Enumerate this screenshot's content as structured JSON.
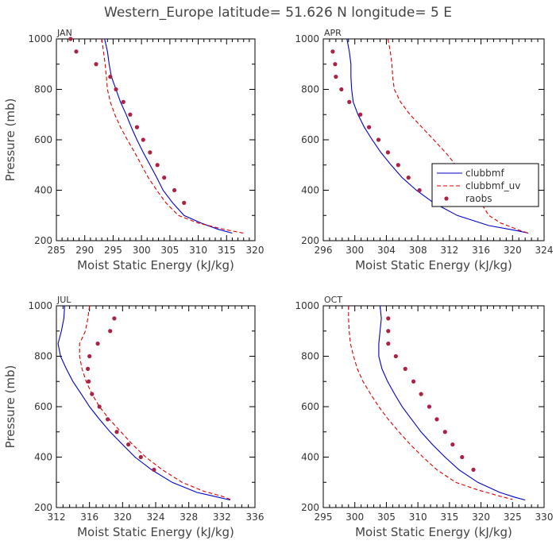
{
  "figure": {
    "title": "Western_Europe  latitude= 51.626 N longitude= 5 E"
  },
  "chart_data": [
    {
      "type": "line",
      "panel": "JAN",
      "xlabel": "Moist Static Energy (kJ/kg)",
      "ylabel": "Pressure (mb)",
      "xlim": [
        285,
        320
      ],
      "ylim": [
        1000,
        200
      ],
      "xticks": [
        285,
        290,
        295,
        300,
        305,
        310,
        315,
        320
      ],
      "yticks": [
        200,
        400,
        600,
        800,
        1000
      ],
      "series": [
        {
          "name": "clubbmf",
          "style": "solid",
          "color": "#0000cc",
          "points": [
            [
              293.5,
              1000
            ],
            [
              294.0,
              950
            ],
            [
              294.3,
              900
            ],
            [
              294.7,
              850
            ],
            [
              295.5,
              800
            ],
            [
              296.3,
              750
            ],
            [
              297.3,
              700
            ],
            [
              298.2,
              650
            ],
            [
              299.2,
              600
            ],
            [
              300.3,
              550
            ],
            [
              301.5,
              500
            ],
            [
              302.7,
              450
            ],
            [
              303.8,
              400
            ],
            [
              305.5,
              350
            ],
            [
              307.5,
              300
            ],
            [
              310.5,
              270
            ],
            [
              313.5,
              245
            ],
            [
              316.0,
              230
            ]
          ]
        },
        {
          "name": "clubbmf_uv",
          "style": "dashed",
          "color": "#dd0000",
          "points": [
            [
              293.0,
              1000
            ],
            [
              293.3,
              950
            ],
            [
              293.6,
              900
            ],
            [
              293.8,
              850
            ],
            [
              294.0,
              800
            ],
            [
              294.5,
              750
            ],
            [
              295.3,
              700
            ],
            [
              296.3,
              650
            ],
            [
              297.5,
              600
            ],
            [
              298.8,
              550
            ],
            [
              300.0,
              500
            ],
            [
              301.2,
              450
            ],
            [
              302.7,
              400
            ],
            [
              304.3,
              350
            ],
            [
              306.5,
              300
            ],
            [
              310.0,
              270
            ],
            [
              314.5,
              245
            ],
            [
              318.0,
              230
            ]
          ]
        },
        {
          "name": "raobs",
          "style": "marker",
          "color": "#aa2244",
          "points": [
            [
              287.5,
              1000
            ],
            [
              288.5,
              950
            ],
            [
              292.0,
              900
            ],
            [
              294.5,
              850
            ],
            [
              295.5,
              800
            ],
            [
              296.8,
              750
            ],
            [
              298.0,
              700
            ],
            [
              299.2,
              650
            ],
            [
              300.3,
              600
            ],
            [
              301.5,
              550
            ],
            [
              302.8,
              500
            ],
            [
              304.0,
              450
            ],
            [
              305.8,
              400
            ],
            [
              307.5,
              350
            ]
          ]
        }
      ]
    },
    {
      "type": "line",
      "panel": "APR",
      "xlabel": "Moist Static Energy (kJ/kg)",
      "ylabel": "",
      "xlim": [
        296,
        324
      ],
      "ylim": [
        1000,
        200
      ],
      "xticks": [
        296,
        300,
        304,
        308,
        312,
        316,
        320,
        324
      ],
      "yticks": [
        200,
        400,
        600,
        800,
        1000
      ],
      "series": [
        {
          "name": "clubbmf",
          "style": "solid",
          "color": "#0000cc",
          "points": [
            [
              299.0,
              1000
            ],
            [
              299.3,
              950
            ],
            [
              299.5,
              900
            ],
            [
              299.5,
              850
            ],
            [
              299.6,
              800
            ],
            [
              299.8,
              750
            ],
            [
              300.4,
              700
            ],
            [
              301.2,
              650
            ],
            [
              302.2,
              600
            ],
            [
              303.3,
              550
            ],
            [
              304.6,
              500
            ],
            [
              306.0,
              450
            ],
            [
              307.8,
              400
            ],
            [
              310.0,
              350
            ],
            [
              313.0,
              300
            ],
            [
              317.0,
              260
            ],
            [
              320.5,
              240
            ],
            [
              322.0,
              230
            ]
          ]
        },
        {
          "name": "clubbmf_uv",
          "style": "dashed",
          "color": "#dd0000",
          "points": [
            [
              304.2,
              1000
            ],
            [
              304.5,
              950
            ],
            [
              304.7,
              900
            ],
            [
              304.8,
              850
            ],
            [
              305.0,
              800
            ],
            [
              305.8,
              750
            ],
            [
              307.0,
              700
            ],
            [
              308.5,
              650
            ],
            [
              310.0,
              600
            ],
            [
              311.5,
              550
            ],
            [
              312.8,
              500
            ],
            [
              314.0,
              450
            ],
            [
              315.0,
              400
            ],
            [
              316.0,
              350
            ],
            [
              317.0,
              300
            ],
            [
              318.5,
              270
            ],
            [
              321.0,
              240
            ],
            [
              322.0,
              230
            ]
          ]
        },
        {
          "name": "raobs",
          "style": "marker",
          "color": "#aa2244",
          "points": [
            [
              297.2,
              950
            ],
            [
              297.5,
              900
            ],
            [
              297.6,
              850
            ],
            [
              298.3,
              800
            ],
            [
              299.3,
              750
            ],
            [
              300.7,
              700
            ],
            [
              301.8,
              650
            ],
            [
              303.0,
              600
            ],
            [
              304.2,
              550
            ],
            [
              305.5,
              500
            ],
            [
              306.8,
              450
            ],
            [
              308.2,
              400
            ]
          ]
        }
      ],
      "legend": {
        "position": "middle-right",
        "entries": [
          "clubbmf",
          "clubbmf_uv",
          "raobs"
        ]
      }
    },
    {
      "type": "line",
      "panel": "JUL",
      "xlabel": "Moist Static Energy (kJ/kg)",
      "ylabel": "Pressure (mb)",
      "xlim": [
        312,
        336
      ],
      "ylim": [
        1000,
        200
      ],
      "xticks": [
        312,
        316,
        320,
        324,
        328,
        332,
        336
      ],
      "yticks": [
        200,
        400,
        600,
        800,
        1000
      ],
      "series": [
        {
          "name": "clubbmf",
          "style": "solid",
          "color": "#0000cc",
          "points": [
            [
              313.0,
              1000
            ],
            [
              312.9,
              950
            ],
            [
              312.6,
              900
            ],
            [
              312.2,
              850
            ],
            [
              312.5,
              800
            ],
            [
              313.2,
              750
            ],
            [
              314.0,
              700
            ],
            [
              315.0,
              650
            ],
            [
              316.0,
              600
            ],
            [
              317.2,
              550
            ],
            [
              318.5,
              500
            ],
            [
              320.0,
              450
            ],
            [
              321.5,
              400
            ],
            [
              323.5,
              350
            ],
            [
              326.0,
              300
            ],
            [
              329.0,
              260
            ],
            [
              331.0,
              245
            ],
            [
              333.0,
              230
            ]
          ]
        },
        {
          "name": "clubbmf_uv",
          "style": "dashed",
          "color": "#dd0000",
          "points": [
            [
              316.0,
              1000
            ],
            [
              315.8,
              950
            ],
            [
              315.5,
              900
            ],
            [
              314.8,
              850
            ],
            [
              314.8,
              800
            ],
            [
              315.1,
              750
            ],
            [
              315.6,
              700
            ],
            [
              316.3,
              650
            ],
            [
              317.2,
              600
            ],
            [
              318.4,
              550
            ],
            [
              319.8,
              500
            ],
            [
              321.2,
              450
            ],
            [
              322.8,
              400
            ],
            [
              324.8,
              350
            ],
            [
              327.2,
              300
            ],
            [
              329.8,
              265
            ],
            [
              332.0,
              245
            ],
            [
              333.2,
              230
            ]
          ]
        },
        {
          "name": "raobs",
          "style": "marker",
          "color": "#aa2244",
          "points": [
            [
              319.0,
              950
            ],
            [
              318.5,
              900
            ],
            [
              317.0,
              850
            ],
            [
              316.0,
              800
            ],
            [
              315.8,
              750
            ],
            [
              315.9,
              700
            ],
            [
              316.3,
              650
            ],
            [
              317.2,
              600
            ],
            [
              318.2,
              550
            ],
            [
              319.3,
              500
            ],
            [
              320.7,
              450
            ],
            [
              322.2,
              400
            ],
            [
              323.8,
              350
            ]
          ]
        }
      ]
    },
    {
      "type": "line",
      "panel": "OCT",
      "xlabel": "Moist Static Energy (kJ/kg)",
      "ylabel": "",
      "xlim": [
        295,
        330
      ],
      "ylim": [
        1000,
        200
      ],
      "xticks": [
        295,
        300,
        305,
        310,
        315,
        320,
        325,
        330
      ],
      "yticks": [
        200,
        400,
        600,
        800,
        1000
      ],
      "series": [
        {
          "name": "clubbmf",
          "style": "solid",
          "color": "#0000cc",
          "points": [
            [
              304.0,
              1000
            ],
            [
              304.2,
              950
            ],
            [
              304.0,
              900
            ],
            [
              303.8,
              850
            ],
            [
              303.8,
              800
            ],
            [
              304.3,
              750
            ],
            [
              305.2,
              700
            ],
            [
              306.3,
              650
            ],
            [
              307.5,
              600
            ],
            [
              309.0,
              550
            ],
            [
              310.5,
              500
            ],
            [
              312.3,
              450
            ],
            [
              314.3,
              400
            ],
            [
              316.5,
              350
            ],
            [
              319.5,
              300
            ],
            [
              323.0,
              260
            ],
            [
              325.5,
              240
            ],
            [
              327.0,
              230
            ]
          ]
        },
        {
          "name": "clubbmf_uv",
          "style": "dashed",
          "color": "#dd0000",
          "points": [
            [
              299.0,
              1000
            ],
            [
              299.0,
              950
            ],
            [
              299.1,
              900
            ],
            [
              299.3,
              850
            ],
            [
              299.8,
              800
            ],
            [
              300.4,
              750
            ],
            [
              301.3,
              700
            ],
            [
              302.5,
              650
            ],
            [
              303.8,
              600
            ],
            [
              305.3,
              550
            ],
            [
              307.0,
              500
            ],
            [
              308.8,
              450
            ],
            [
              310.8,
              400
            ],
            [
              313.0,
              350
            ],
            [
              316.0,
              300
            ],
            [
              319.5,
              270
            ],
            [
              323.0,
              245
            ],
            [
              325.0,
              232
            ]
          ]
        },
        {
          "name": "raobs",
          "style": "marker",
          "color": "#aa2244",
          "points": [
            [
              305.3,
              950
            ],
            [
              305.3,
              900
            ],
            [
              305.3,
              850
            ],
            [
              306.5,
              800
            ],
            [
              308.0,
              750
            ],
            [
              309.3,
              700
            ],
            [
              310.5,
              650
            ],
            [
              311.8,
              600
            ],
            [
              313.0,
              550
            ],
            [
              314.3,
              500
            ],
            [
              315.5,
              450
            ],
            [
              317.0,
              400
            ],
            [
              318.8,
              350
            ]
          ]
        }
      ]
    }
  ]
}
